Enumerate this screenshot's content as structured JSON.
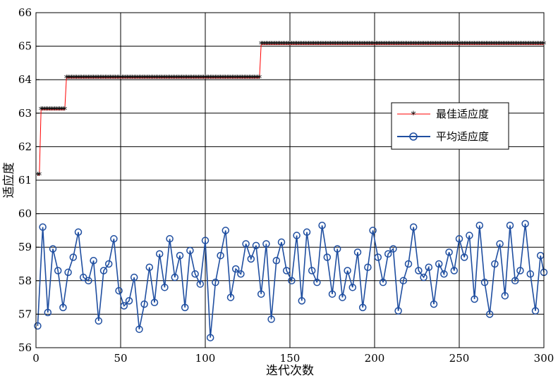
{
  "chart_data": {
    "type": "line",
    "xlabel": "迭代次数",
    "ylabel": "适应度",
    "xlim": [
      0,
      300
    ],
    "ylim": [
      56,
      66
    ],
    "xticks": [
      0,
      50,
      100,
      150,
      200,
      250,
      300
    ],
    "yticks": [
      56,
      57,
      58,
      59,
      60,
      61,
      62,
      63,
      64,
      65,
      66
    ],
    "grid": true,
    "legend_position": "right-middle",
    "series": [
      {
        "name": "最佳适应度",
        "color": "#ff0000",
        "marker": "star",
        "x": [
          1,
          2,
          3,
          17,
          18,
          132,
          133,
          300
        ],
        "y": [
          61.15,
          61.15,
          63.1,
          63.1,
          64.05,
          64.05,
          65.05,
          65.05
        ]
      },
      {
        "name": "平均适应度",
        "color": "#1f4ea0",
        "marker": "circle",
        "x": [
          1,
          4,
          7,
          10,
          13,
          16,
          19,
          22,
          25,
          28,
          31,
          34,
          37,
          40,
          43,
          46,
          49,
          52,
          55,
          58,
          61,
          64,
          67,
          70,
          73,
          76,
          79,
          82,
          85,
          88,
          91,
          94,
          97,
          100,
          103,
          106,
          109,
          112,
          115,
          118,
          121,
          124,
          127,
          130,
          133,
          136,
          139,
          142,
          145,
          148,
          151,
          154,
          157,
          160,
          163,
          166,
          169,
          172,
          175,
          178,
          181,
          184,
          187,
          190,
          193,
          196,
          199,
          202,
          205,
          208,
          211,
          214,
          217,
          220,
          223,
          226,
          229,
          232,
          235,
          238,
          241,
          244,
          247,
          250,
          253,
          256,
          259,
          262,
          265,
          268,
          271,
          274,
          277,
          280,
          283,
          286,
          289,
          292,
          295,
          298,
          300
        ],
        "y": [
          56.65,
          59.6,
          57.05,
          58.95,
          58.3,
          57.2,
          58.25,
          58.7,
          59.45,
          58.1,
          58.0,
          58.6,
          56.8,
          58.3,
          58.5,
          59.25,
          57.7,
          57.25,
          57.4,
          58.1,
          56.55,
          57.3,
          58.4,
          57.35,
          58.8,
          57.8,
          59.25,
          58.1,
          58.75,
          57.2,
          58.9,
          58.2,
          57.9,
          59.2,
          56.3,
          57.95,
          58.75,
          59.5,
          57.5,
          58.35,
          58.2,
          59.1,
          58.65,
          59.05,
          57.6,
          59.1,
          56.85,
          58.6,
          59.15,
          58.3,
          58.0,
          59.35,
          57.4,
          59.45,
          58.3,
          57.95,
          59.65,
          58.7,
          57.6,
          58.95,
          57.5,
          58.3,
          57.8,
          58.85,
          57.2,
          58.4,
          59.5,
          58.7,
          57.95,
          58.8,
          58.95,
          57.1,
          58.0,
          58.5,
          59.6,
          58.3,
          58.1,
          58.4,
          57.3,
          58.5,
          58.2,
          58.85,
          58.3,
          59.25,
          58.7,
          59.35,
          57.45,
          59.65,
          57.95,
          57.0,
          58.5,
          59.1,
          57.55,
          59.65,
          58.0,
          58.3,
          59.7,
          58.2,
          57.1,
          58.75,
          58.25
        ]
      }
    ]
  }
}
